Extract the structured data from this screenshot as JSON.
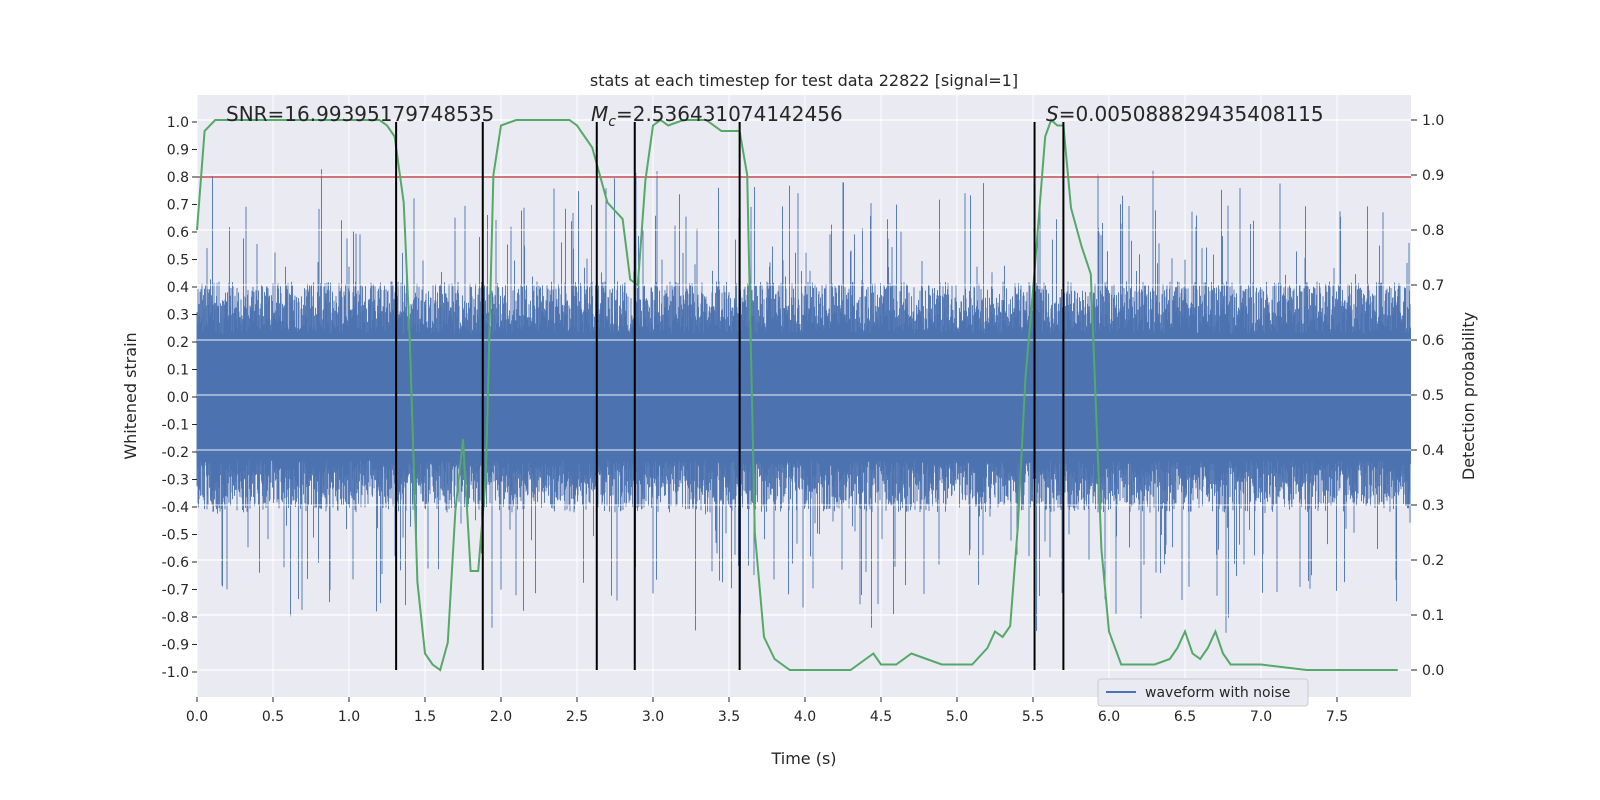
{
  "chart_data": {
    "type": "line",
    "title": "stats at each timestep for test data 22822 [signal=1]",
    "xlabel": "Time (s)",
    "ylabel": "Whitened strain",
    "y2label": "Detection probability",
    "xlim": [
      0.0,
      8.0
    ],
    "ylim": [
      -1.07,
      1.1
    ],
    "y2lim": [
      -0.05,
      1.05
    ],
    "xticks": [
      "0.0",
      "0.5",
      "1.0",
      "1.5",
      "2.0",
      "2.5",
      "3.0",
      "3.5",
      "4.0",
      "4.5",
      "5.0",
      "5.5",
      "6.0",
      "6.5",
      "7.0",
      "7.5"
    ],
    "yticks": [
      "1.0",
      "0.9",
      "0.8",
      "0.7",
      "0.6",
      "0.5",
      "0.4",
      "0.3",
      "0.2",
      "0.1",
      "0.0",
      "-0.1",
      "-0.2",
      "-0.3",
      "-0.4",
      "-0.5",
      "-0.6",
      "-0.7",
      "-0.8",
      "-0.9",
      "-1.0"
    ],
    "y2ticks": [
      "1.0",
      "0.9",
      "0.8",
      "0.7",
      "0.6",
      "0.5",
      "0.4",
      "0.3",
      "0.2",
      "0.1",
      "0.0"
    ],
    "annotations": {
      "snr": "SNR=16.99395179748535",
      "mc_prefix": "M",
      "mc_sub": "c",
      "mc_value": "=2.536431074142456",
      "s_prefix": "S",
      "s_value": "=0.005088829435408115"
    },
    "threshold": 0.8,
    "vlines": [
      1.31,
      1.88,
      2.63,
      2.88,
      3.57,
      5.51,
      5.7
    ],
    "waveform": {
      "name": "waveform with noise",
      "envelope": 0.42,
      "max": 1.0,
      "min": -0.97
    },
    "detection_probability": {
      "t": [
        0.0,
        0.05,
        0.12,
        0.2,
        0.4,
        0.8,
        1.0,
        1.2,
        1.25,
        1.3,
        1.36,
        1.4,
        1.45,
        1.5,
        1.55,
        1.6,
        1.65,
        1.7,
        1.75,
        1.8,
        1.85,
        1.9,
        1.95,
        2.0,
        2.1,
        2.3,
        2.45,
        2.5,
        2.6,
        2.7,
        2.8,
        2.85,
        2.9,
        2.95,
        3.0,
        3.05,
        3.1,
        3.2,
        3.35,
        3.45,
        3.57,
        3.62,
        3.67,
        3.73,
        3.8,
        3.9,
        4.0,
        4.1,
        4.2,
        4.3,
        4.4,
        4.45,
        4.5,
        4.6,
        4.7,
        4.8,
        4.9,
        5.0,
        5.1,
        5.2,
        5.25,
        5.3,
        5.35,
        5.4,
        5.45,
        5.5,
        5.58,
        5.62,
        5.66,
        5.7,
        5.75,
        5.82,
        5.88,
        5.95,
        6.0,
        6.08,
        6.15,
        6.3,
        6.4,
        6.45,
        6.5,
        6.55,
        6.6,
        6.65,
        6.7,
        6.75,
        6.8,
        6.9,
        7.0,
        7.3,
        7.6,
        7.9
      ],
      "p": [
        0.8,
        0.98,
        1.0,
        1.0,
        1.0,
        1.0,
        1.0,
        1.0,
        0.99,
        0.97,
        0.85,
        0.6,
        0.16,
        0.03,
        0.01,
        0.0,
        0.05,
        0.29,
        0.42,
        0.18,
        0.18,
        0.35,
        0.9,
        0.99,
        1.0,
        1.0,
        1.0,
        0.99,
        0.95,
        0.85,
        0.82,
        0.71,
        0.7,
        0.89,
        0.99,
        1.0,
        0.99,
        1.0,
        1.0,
        0.98,
        0.98,
        0.9,
        0.25,
        0.06,
        0.02,
        0.0,
        0.0,
        0.0,
        0.0,
        0.0,
        0.02,
        0.03,
        0.01,
        0.01,
        0.03,
        0.02,
        0.01,
        0.01,
        0.01,
        0.04,
        0.07,
        0.06,
        0.08,
        0.26,
        0.53,
        0.69,
        0.97,
        1.0,
        0.99,
        0.99,
        0.84,
        0.77,
        0.72,
        0.22,
        0.07,
        0.01,
        0.01,
        0.01,
        0.02,
        0.04,
        0.07,
        0.03,
        0.02,
        0.04,
        0.07,
        0.03,
        0.01,
        0.01,
        0.01,
        0.0,
        0.0,
        0.0
      ]
    },
    "colors": {
      "background": "#eaeaf2",
      "grid": "#ffffff",
      "waveform": "#4c72b0",
      "probability": "#55a868",
      "threshold": "#c44e52",
      "vline": "#000000"
    },
    "legend_loc": "lower-right"
  }
}
